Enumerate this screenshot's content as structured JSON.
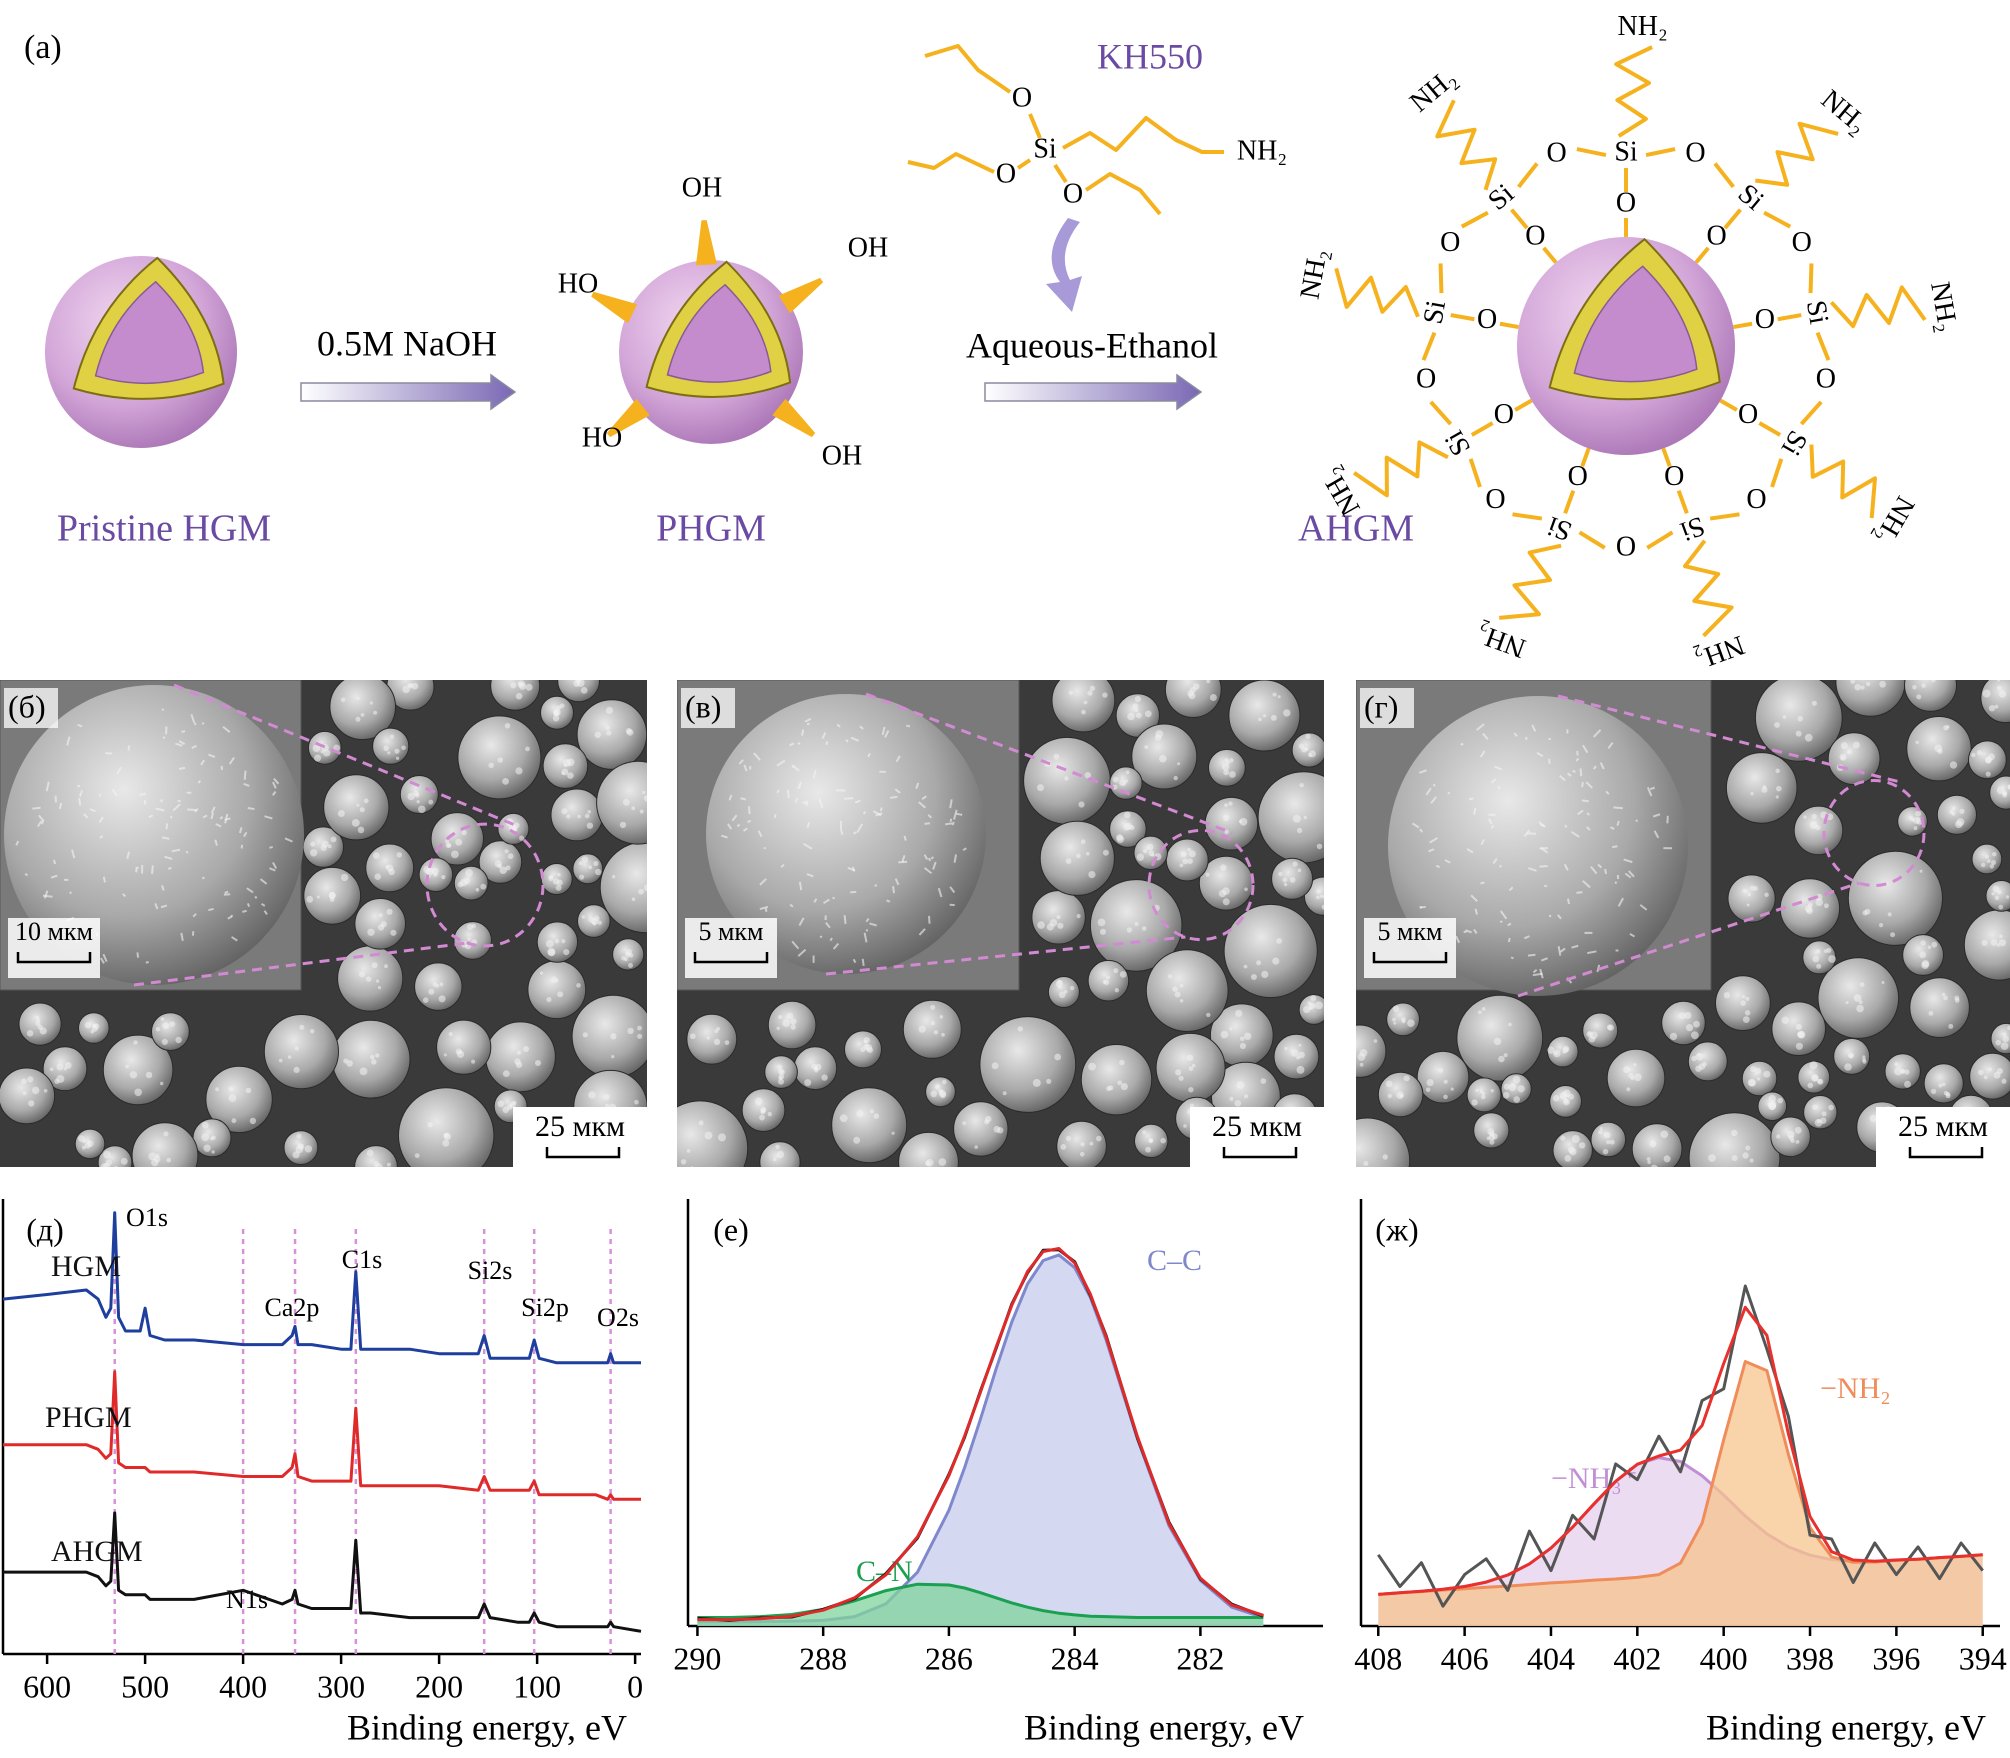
{
  "scheme": {
    "label": "(a)",
    "stages": [
      "Pristine HGM",
      "PHGM",
      "AHGM"
    ],
    "steps": [
      "0.5M NaOH",
      "Aqueous-Ethanol"
    ],
    "reagent": "KH550",
    "reagent_atoms": [
      "O",
      "Si",
      "O",
      "O",
      "NH₂"
    ],
    "hydroxyls": [
      "OH",
      "OH",
      "HO",
      "HO",
      "OH"
    ],
    "ring_si": [
      "Si",
      "Si",
      "Si",
      "Si",
      "Si",
      "Si",
      "Si",
      "Si",
      "Si"
    ],
    "ring_o": [
      "O",
      "O",
      "O",
      "O",
      "O",
      "O",
      "O",
      "O",
      "O",
      "O",
      "O",
      "O",
      "O",
      "O",
      "O",
      "O",
      "O",
      "O"
    ],
    "ring_nh2": [
      "NH₂",
      "NH₂",
      "NH₂",
      "NH₂",
      "NH₂",
      "NH₂",
      "NH₂",
      "NH₂",
      "NH₂"
    ]
  },
  "sem_panels": [
    {
      "label": "(б)",
      "inset_scale": "10 мкм",
      "scale": "25 мкм"
    },
    {
      "label": "(в)",
      "inset_scale": "5 мкм",
      "scale": "25 мкм"
    },
    {
      "label": "(г)",
      "inset_scale": "5 мкм",
      "scale": "25 мкм"
    }
  ],
  "chart_data": [
    {
      "type": "line",
      "panel_label": "(д)",
      "x_label": "Binding energy, eV",
      "x": [
        645,
        600,
        560,
        548,
        540,
        535,
        531,
        527,
        520,
        505,
        500,
        495,
        480,
        450,
        400,
        360,
        350,
        347,
        344,
        330,
        300,
        290,
        285,
        280,
        270,
        230,
        200,
        160,
        154,
        148,
        120,
        108,
        103,
        98,
        80,
        40,
        28,
        25,
        22,
        -6
      ],
      "series": [
        {
          "name": "HGM",
          "color": "#1e3f9e",
          "values": [
            78,
            79,
            80,
            78,
            74,
            76,
            97,
            74,
            71,
            71,
            76,
            70,
            69,
            69,
            68,
            68,
            70,
            72,
            68,
            68,
            67,
            67,
            84,
            67,
            67,
            67,
            66,
            66,
            70,
            65,
            65,
            65,
            69,
            65,
            64,
            64,
            64,
            66,
            64,
            64
          ]
        },
        {
          "name": "PHGM",
          "color": "#e02a2a",
          "values": [
            46,
            46,
            46,
            45,
            43,
            44,
            62,
            42,
            41,
            41,
            41,
            40,
            40,
            40,
            39,
            39,
            41,
            44,
            39,
            38,
            38,
            38,
            54,
            37,
            37,
            37,
            37,
            36,
            39,
            36,
            36,
            36,
            38,
            35,
            35,
            35,
            34,
            35,
            34,
            34
          ]
        },
        {
          "name": "AHGM",
          "color": "#111111",
          "values": [
            18,
            18,
            18,
            17,
            15,
            16,
            31,
            14,
            13,
            13,
            13,
            12,
            12,
            12,
            14,
            11,
            12,
            14,
            11,
            10,
            10,
            10,
            25,
            9,
            9,
            8,
            8,
            8,
            11,
            8,
            7,
            7,
            9,
            7,
            6,
            6,
            6,
            7,
            6,
            5
          ]
        }
      ],
      "peaks": [
        {
          "label": "O1s",
          "x": 531
        },
        {
          "label": "Ca2p",
          "x": 347
        },
        {
          "label": "C1s",
          "x": 285
        },
        {
          "label": "Si2s",
          "x": 154
        },
        {
          "label": "Si2p",
          "x": 103
        },
        {
          "label": "O2s",
          "x": 25
        },
        {
          "label": "N1s",
          "x": 400
        }
      ],
      "peak_color": "#d890d8",
      "xlim": [
        645,
        -6
      ],
      "xticks": [
        600,
        500,
        400,
        300,
        200,
        100,
        0
      ],
      "ylim": [
        0,
        100
      ]
    },
    {
      "type": "line",
      "panel_label": "(е)",
      "x_label": "Binding energy, eV",
      "x": [
        290,
        289.5,
        289,
        288.5,
        288,
        287.5,
        287,
        286.5,
        286,
        285.75,
        285.5,
        285.25,
        285,
        284.75,
        284.5,
        284.25,
        284,
        283.75,
        283.5,
        283,
        282.5,
        282,
        281.5,
        281
      ],
      "series": [
        {
          "name": "C–C",
          "color": "#7f88cc",
          "fill": "#c6cbeb",
          "values": [
            1,
            1,
            1,
            1.1,
            1.3,
            2.2,
            5.2,
            12.6,
            27.1,
            37.1,
            48.4,
            60.2,
            71.2,
            80.1,
            85.6,
            86.9,
            83.9,
            76.9,
            67.0,
            43.8,
            23.5,
            10.7,
            4.4,
            2.0
          ]
        },
        {
          "name": "C–N",
          "color": "#1aa050",
          "fill": "#80d49c",
          "values": [
            2.0,
            2.0,
            2.2,
            2.7,
            3.9,
            5.9,
            8.3,
            9.8,
            9.6,
            8.9,
            7.8,
            6.6,
            5.4,
            4.4,
            3.6,
            3.0,
            2.6,
            2.3,
            2.2,
            2.0,
            2.0,
            2.0,
            2.0,
            2.0
          ]
        },
        {
          "color": "#1a1a1a",
          "values": [
            1.8,
            1.3,
            1.9,
            2.1,
            3.9,
            6.4,
            12.3,
            20.6,
            35.5,
            44.2,
            55.0,
            65.0,
            75.4,
            82.7,
            88.0,
            88.1,
            85.3,
            77.4,
            68.0,
            44.0,
            24.3,
            11.0,
            5.1,
            2.3
          ]
        },
        {
          "color": "#e02a2a",
          "values": [
            1.5,
            1.5,
            1.7,
            2.3,
            3.7,
            6.6,
            12.0,
            20.9,
            35.2,
            44.5,
            54.7,
            65.3,
            75.1,
            83.0,
            87.7,
            88.4,
            85.0,
            77.7,
            67.7,
            44.3,
            24.0,
            11.2,
            4.9,
            2.5
          ]
        }
      ],
      "xlim": [
        290.15,
        280.05
      ],
      "xticks": [
        290,
        288,
        286,
        284,
        282
      ],
      "ylim": [
        0,
        100
      ]
    },
    {
      "type": "line",
      "panel_label": "(ж)",
      "x_label": "Binding energy, eV",
      "x": [
        408,
        407.5,
        407,
        406.5,
        406,
        405.5,
        405,
        404.5,
        404,
        403.5,
        403,
        402.5,
        402,
        401.5,
        401,
        400.5,
        400,
        399.5,
        399,
        398.5,
        398,
        397.5,
        397,
        396.5,
        396,
        395.5,
        395,
        394.5,
        394
      ],
      "series": [
        {
          "name": "−NH₃⁺",
          "color": "#c38fd4",
          "fill": "#e6d0ec",
          "values": [
            0.0,
            0.4,
            0.8,
            1.3,
            2.0,
            3.1,
            4.9,
            7.7,
            11.7,
            17.0,
            22.9,
            28.6,
            32.9,
            34.6,
            33.6,
            30.0,
            25.1,
            19.8,
            15.3,
            12.0,
            9.9,
            8.8,
            8.4,
            8.4,
            8.7,
            8.9,
            9.3,
            9.6,
            10.0
          ]
        },
        {
          "name": "−NH₂",
          "color": "#f08c5a",
          "fill": "#f7c48c",
          "values": [
            0,
            0.4,
            0.7,
            1.1,
            1.4,
            1.8,
            2.1,
            2.5,
            2.9,
            3.2,
            3.6,
            3.9,
            4.3,
            5.0,
            7.9,
            18.0,
            39.1,
            58.9,
            56.6,
            35.4,
            16.9,
            9.5,
            8.1,
            8.2,
            8.6,
            8.9,
            9.3,
            9.6,
            10.0
          ]
        },
        {
          "color": "#555555",
          "values": [
            10,
            2,
            8,
            -3,
            5,
            9,
            1,
            16,
            6,
            20,
            14,
            33,
            29,
            40,
            31,
            49,
            52,
            78,
            62,
            45,
            15,
            14,
            3,
            13,
            5,
            12,
            4,
            13,
            6
          ]
        },
        {
          "color": "#e8302c",
          "values": [
            0,
            0.4,
            0.8,
            1.3,
            2.0,
            3.1,
            4.9,
            7.7,
            11.7,
            17.0,
            22.9,
            28.6,
            32.9,
            35.0,
            36.5,
            42.7,
            58.4,
            72.6,
            65.5,
            40.6,
            19.7,
            10.8,
            8.7,
            8.4,
            8.7,
            8.9,
            9.3,
            9.6,
            10.0
          ]
        }
      ],
      "xlim": [
        408.4,
        393.6
      ],
      "xticks": [
        408,
        406,
        404,
        402,
        400,
        398,
        396,
        394
      ],
      "ylim": [
        -8,
        100
      ]
    }
  ]
}
